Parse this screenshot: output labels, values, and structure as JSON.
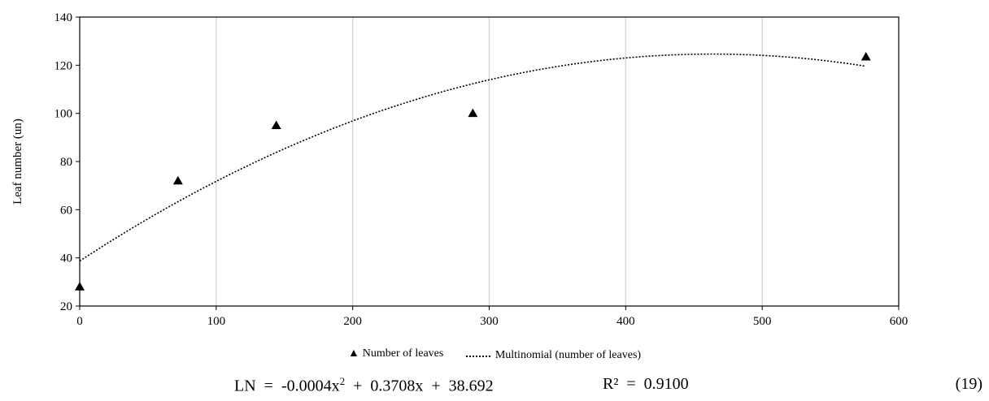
{
  "chart_data": {
    "type": "scatter",
    "ylabel": "Leaf number  (un)",
    "xlabel": "",
    "xlim": [
      0,
      600
    ],
    "ylim": [
      20,
      140
    ],
    "xticks": [
      "0",
      "100",
      "200",
      "300",
      "400",
      "500",
      "600"
    ],
    "yticks": [
      "20",
      "40",
      "60",
      "80",
      "100",
      "120",
      "140"
    ],
    "grid": "vertical",
    "series": [
      {
        "name": "Number of leaves",
        "marker": "triangle",
        "color": "#000000",
        "points": [
          {
            "x": 0,
            "y": 28
          },
          {
            "x": 72,
            "y": 72
          },
          {
            "x": 144,
            "y": 95
          },
          {
            "x": 288,
            "y": 100
          },
          {
            "x": 576,
            "y": 123.5
          }
        ]
      }
    ],
    "trendline": {
      "name": "Multinomial (number of leaves)",
      "style": "dotted",
      "coefficients": [
        -0.0004,
        0.3708,
        38.692
      ],
      "x_range": [
        0,
        576
      ]
    },
    "legend_placement": "bottom"
  },
  "equation": {
    "text_a": "LN  =  -0.0004x",
    "sup": "2",
    "text_b": "  +  0.3708x  +  38.692",
    "r2": "R²  =  0.9100",
    "number": "(19)"
  }
}
